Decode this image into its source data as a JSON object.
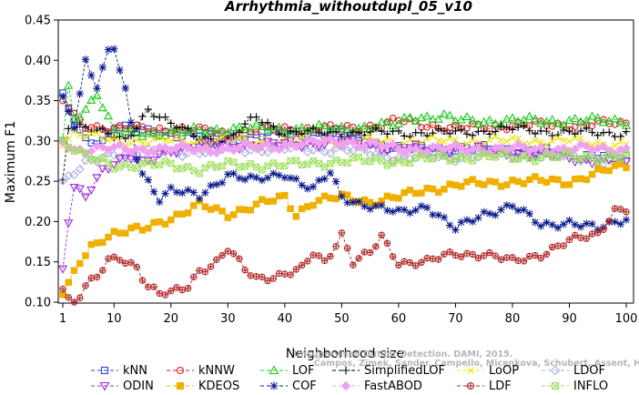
{
  "chart_data": {
    "type": "line",
    "title": "Arrhythmia_withoutdupl_05_v10",
    "xlabel": "Neighborhood size",
    "ylabel": "Maximum F1",
    "xlim": [
      1,
      100
    ],
    "ylim": [
      0.1,
      0.45
    ],
    "x_ticks": [
      1,
      10,
      20,
      30,
      40,
      50,
      60,
      70,
      80,
      90,
      100
    ],
    "y_ticks": [
      0.1,
      0.15,
      0.2,
      0.25,
      0.3,
      0.35,
      0.4,
      0.45
    ],
    "grid": false,
    "legend": "bottom",
    "watermark": [
      "Unsupervised Outlier Detection. DAMI, 2015.",
      "Campos, Zimek, Sander, Campello, Micenkova, Schubert, Assent, Houle"
    ],
    "series": [
      {
        "name": "kNN",
        "color": "#2a47d6",
        "marker": "square",
        "anchors": [
          [
            1,
            0.355
          ],
          [
            2,
            0.34
          ],
          [
            3,
            0.32
          ],
          [
            5,
            0.3
          ],
          [
            8,
            0.3
          ],
          [
            10,
            0.32
          ],
          [
            15,
            0.31
          ],
          [
            20,
            0.31
          ],
          [
            30,
            0.305
          ],
          [
            40,
            0.31
          ],
          [
            50,
            0.31
          ],
          [
            60,
            0.29
          ],
          [
            70,
            0.29
          ],
          [
            80,
            0.29
          ],
          [
            90,
            0.283
          ],
          [
            100,
            0.28
          ]
        ]
      },
      {
        "name": "kNNW",
        "color": "#d81e1e",
        "marker": "circle",
        "anchors": [
          [
            1,
            0.35
          ],
          [
            3,
            0.33
          ],
          [
            5,
            0.32
          ],
          [
            10,
            0.315
          ],
          [
            20,
            0.315
          ],
          [
            30,
            0.31
          ],
          [
            40,
            0.315
          ],
          [
            50,
            0.315
          ],
          [
            57,
            0.32
          ],
          [
            60,
            0.325
          ],
          [
            70,
            0.315
          ],
          [
            80,
            0.32
          ],
          [
            90,
            0.32
          ],
          [
            100,
            0.322
          ]
        ]
      },
      {
        "name": "LOF",
        "color": "#1ec81e",
        "marker": "triangle-up",
        "anchors": [
          [
            1,
            0.3
          ],
          [
            2,
            0.365
          ],
          [
            3,
            0.33
          ],
          [
            5,
            0.34
          ],
          [
            7,
            0.36
          ],
          [
            10,
            0.31
          ],
          [
            20,
            0.31
          ],
          [
            30,
            0.315
          ],
          [
            40,
            0.315
          ],
          [
            50,
            0.315
          ],
          [
            60,
            0.32
          ],
          [
            62,
            0.33
          ],
          [
            68,
            0.33
          ],
          [
            70,
            0.325
          ],
          [
            80,
            0.325
          ],
          [
            90,
            0.325
          ],
          [
            100,
            0.325
          ]
        ]
      },
      {
        "name": "SimplifiedLOF",
        "color": "#000000",
        "marker": "plus",
        "anchors": [
          [
            1,
            0.25
          ],
          [
            2,
            0.32
          ],
          [
            4,
            0.32
          ],
          [
            8,
            0.31
          ],
          [
            12,
            0.3
          ],
          [
            16,
            0.34
          ],
          [
            20,
            0.32
          ],
          [
            25,
            0.305
          ],
          [
            30,
            0.3
          ],
          [
            35,
            0.33
          ],
          [
            40,
            0.31
          ],
          [
            50,
            0.31
          ],
          [
            60,
            0.31
          ],
          [
            70,
            0.31
          ],
          [
            80,
            0.315
          ],
          [
            90,
            0.31
          ],
          [
            100,
            0.31
          ]
        ]
      },
      {
        "name": "LoOP",
        "color": "#f0e000",
        "marker": "x",
        "anchors": [
          [
            1,
            0.3
          ],
          [
            3,
            0.31
          ],
          [
            10,
            0.3
          ],
          [
            20,
            0.3
          ],
          [
            30,
            0.3
          ],
          [
            40,
            0.3
          ],
          [
            50,
            0.3
          ],
          [
            60,
            0.3
          ],
          [
            70,
            0.3
          ],
          [
            80,
            0.3
          ],
          [
            90,
            0.3
          ],
          [
            100,
            0.295
          ]
        ]
      },
      {
        "name": "LDOF",
        "color": "#a8a8e0",
        "marker": "diamond",
        "anchors": [
          [
            1,
            0.25
          ],
          [
            3,
            0.26
          ],
          [
            5,
            0.27
          ],
          [
            10,
            0.285
          ],
          [
            20,
            0.285
          ],
          [
            30,
            0.29
          ],
          [
            40,
            0.29
          ],
          [
            50,
            0.29
          ],
          [
            60,
            0.28
          ],
          [
            70,
            0.28
          ],
          [
            80,
            0.285
          ],
          [
            90,
            0.28
          ],
          [
            100,
            0.275
          ]
        ]
      },
      {
        "name": "ODIN",
        "color": "#9b2ad6",
        "marker": "triangle-down",
        "anchors": [
          [
            1,
            0.14
          ],
          [
            2,
            0.2
          ],
          [
            3,
            0.24
          ],
          [
            5,
            0.23
          ],
          [
            8,
            0.265
          ],
          [
            10,
            0.275
          ],
          [
            13,
            0.28
          ],
          [
            15,
            0.27
          ],
          [
            20,
            0.29
          ],
          [
            30,
            0.295
          ],
          [
            40,
            0.295
          ],
          [
            50,
            0.3
          ],
          [
            60,
            0.29
          ],
          [
            70,
            0.29
          ],
          [
            80,
            0.285
          ],
          [
            90,
            0.28
          ],
          [
            100,
            0.27
          ]
        ]
      },
      {
        "name": "KDEOS",
        "color": "#f0b000",
        "marker": "square-filled",
        "anchors": [
          [
            1,
            0.11
          ],
          [
            2,
            0.12
          ],
          [
            4,
            0.15
          ],
          [
            6,
            0.17
          ],
          [
            8,
            0.18
          ],
          [
            10,
            0.185
          ],
          [
            15,
            0.19
          ],
          [
            18,
            0.2
          ],
          [
            22,
            0.21
          ],
          [
            25,
            0.22
          ],
          [
            30,
            0.21
          ],
          [
            35,
            0.22
          ],
          [
            40,
            0.23
          ],
          [
            42,
            0.21
          ],
          [
            45,
            0.225
          ],
          [
            50,
            0.23
          ],
          [
            55,
            0.225
          ],
          [
            60,
            0.23
          ],
          [
            65,
            0.24
          ],
          [
            70,
            0.245
          ],
          [
            80,
            0.25
          ],
          [
            90,
            0.25
          ],
          [
            95,
            0.26
          ],
          [
            100,
            0.27
          ]
        ]
      },
      {
        "name": "COF",
        "color": "#0a1a8c",
        "marker": "asterisk",
        "anchors": [
          [
            1,
            0.35
          ],
          [
            3,
            0.32
          ],
          [
            5,
            0.4
          ],
          [
            7,
            0.37
          ],
          [
            9,
            0.41
          ],
          [
            10,
            0.415
          ],
          [
            12,
            0.36
          ],
          [
            14,
            0.28
          ],
          [
            15,
            0.26
          ],
          [
            18,
            0.23
          ],
          [
            20,
            0.24
          ],
          [
            25,
            0.23
          ],
          [
            30,
            0.26
          ],
          [
            35,
            0.25
          ],
          [
            40,
            0.26
          ],
          [
            45,
            0.24
          ],
          [
            48,
            0.26
          ],
          [
            50,
            0.23
          ],
          [
            55,
            0.22
          ],
          [
            60,
            0.21
          ],
          [
            65,
            0.22
          ],
          [
            70,
            0.19
          ],
          [
            75,
            0.21
          ],
          [
            80,
            0.22
          ],
          [
            85,
            0.195
          ],
          [
            90,
            0.2
          ],
          [
            95,
            0.19
          ],
          [
            100,
            0.205
          ]
        ]
      },
      {
        "name": "FastABOD",
        "color": "#f0a0f0",
        "marker": "diamond-filled",
        "anchors": [
          [
            1,
            0.3
          ],
          [
            3,
            0.29
          ],
          [
            10,
            0.29
          ],
          [
            20,
            0.29
          ],
          [
            30,
            0.29
          ],
          [
            40,
            0.295
          ],
          [
            50,
            0.3
          ],
          [
            60,
            0.29
          ],
          [
            70,
            0.29
          ],
          [
            80,
            0.29
          ],
          [
            90,
            0.29
          ],
          [
            100,
            0.29
          ]
        ]
      },
      {
        "name": "LDF",
        "color": "#b02828",
        "marker": "circle-plus",
        "anchors": [
          [
            1,
            0.12
          ],
          [
            2,
            0.105
          ],
          [
            3,
            0.1
          ],
          [
            5,
            0.12
          ],
          [
            7,
            0.13
          ],
          [
            9,
            0.15
          ],
          [
            11,
            0.155
          ],
          [
            14,
            0.145
          ],
          [
            16,
            0.12
          ],
          [
            18,
            0.11
          ],
          [
            20,
            0.11
          ],
          [
            23,
            0.12
          ],
          [
            25,
            0.14
          ],
          [
            28,
            0.15
          ],
          [
            30,
            0.165
          ],
          [
            33,
            0.14
          ],
          [
            35,
            0.13
          ],
          [
            40,
            0.135
          ],
          [
            43,
            0.14
          ],
          [
            45,
            0.16
          ],
          [
            47,
            0.15
          ],
          [
            50,
            0.185
          ],
          [
            52,
            0.15
          ],
          [
            55,
            0.16
          ],
          [
            57,
            0.18
          ],
          [
            60,
            0.15
          ],
          [
            65,
            0.15
          ],
          [
            70,
            0.16
          ],
          [
            75,
            0.16
          ],
          [
            80,
            0.15
          ],
          [
            85,
            0.16
          ],
          [
            90,
            0.175
          ],
          [
            95,
            0.185
          ],
          [
            98,
            0.215
          ],
          [
            100,
            0.215
          ]
        ]
      },
      {
        "name": "INFLO",
        "color": "#a0e060",
        "marker": "square-x",
        "anchors": [
          [
            1,
            0.3
          ],
          [
            3,
            0.29
          ],
          [
            5,
            0.28
          ],
          [
            10,
            0.27
          ],
          [
            15,
            0.27
          ],
          [
            20,
            0.27
          ],
          [
            25,
            0.265
          ],
          [
            30,
            0.27
          ],
          [
            40,
            0.27
          ],
          [
            50,
            0.275
          ],
          [
            60,
            0.275
          ],
          [
            70,
            0.28
          ],
          [
            80,
            0.28
          ],
          [
            90,
            0.28
          ],
          [
            100,
            0.28
          ]
        ]
      }
    ]
  }
}
